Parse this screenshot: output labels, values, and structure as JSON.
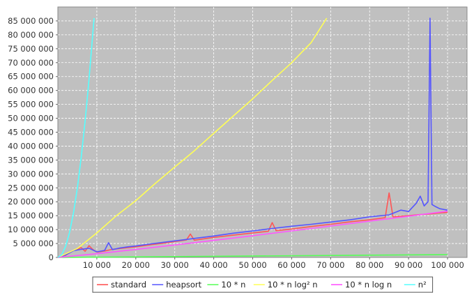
{
  "chart_data": {
    "type": "line",
    "title": "",
    "xlabel": "",
    "ylabel": "",
    "xlim": [
      0,
      105000
    ],
    "ylim": [
      0,
      90000000
    ],
    "grid": true,
    "legend_position": "bottom",
    "x_ticks": [
      {
        "value": 10000,
        "label": "10 000"
      },
      {
        "value": 20000,
        "label": "20 000"
      },
      {
        "value": 30000,
        "label": "30 000"
      },
      {
        "value": 40000,
        "label": "40 000"
      },
      {
        "value": 50000,
        "label": "50 000"
      },
      {
        "value": 60000,
        "label": "60 000"
      },
      {
        "value": 70000,
        "label": "70 000"
      },
      {
        "value": 80000,
        "label": "80 000"
      },
      {
        "value": 90000,
        "label": "90 000"
      },
      {
        "value": 100000,
        "label": "100 000"
      }
    ],
    "y_ticks": [
      {
        "value": 0,
        "label": "0"
      },
      {
        "value": 5000000,
        "label": "5 000 000"
      },
      {
        "value": 10000000,
        "label": "10 000 000"
      },
      {
        "value": 15000000,
        "label": "15 000 000"
      },
      {
        "value": 20000000,
        "label": "20 000 000"
      },
      {
        "value": 25000000,
        "label": "25 000 000"
      },
      {
        "value": 30000000,
        "label": "30 000 000"
      },
      {
        "value": 35000000,
        "label": "35 000 000"
      },
      {
        "value": 40000000,
        "label": "40 000 000"
      },
      {
        "value": 45000000,
        "label": "45 000 000"
      },
      {
        "value": 50000000,
        "label": "50 000 000"
      },
      {
        "value": 55000000,
        "label": "55 000 000"
      },
      {
        "value": 60000000,
        "label": "60 000 000"
      },
      {
        "value": 65000000,
        "label": "65 000 000"
      },
      {
        "value": 70000000,
        "label": "70 000 000"
      },
      {
        "value": 75000000,
        "label": "75 000 000"
      },
      {
        "value": 80000000,
        "label": "80 000 000"
      },
      {
        "value": 85000000,
        "label": "85 000 000"
      }
    ],
    "series": [
      {
        "name": "standard",
        "color": "#ff5555",
        "x": [
          0,
          2000,
          4000,
          6000,
          7000,
          8000,
          9000,
          10000,
          12000,
          14000,
          16000,
          18000,
          20000,
          24000,
          28000,
          30000,
          33000,
          34000,
          35000,
          40000,
          45000,
          50000,
          54000,
          55000,
          56000,
          60000,
          65000,
          70000,
          75000,
          80000,
          84000,
          85000,
          86000,
          88000,
          90000,
          92000,
          94000,
          95000,
          96000,
          98000,
          100000
        ],
        "y": [
          0,
          800000,
          2500000,
          3500000,
          2200000,
          4200000,
          2800000,
          1900000,
          2300000,
          2900000,
          3200000,
          3500000,
          3800000,
          4600000,
          5300000,
          5700000,
          6300000,
          8400000,
          6200000,
          7200000,
          8000000,
          8800000,
          9400000,
          12500000,
          9600000,
          10200000,
          11100000,
          11900000,
          12800000,
          13500000,
          14300000,
          23200000,
          14600000,
          14800000,
          15000000,
          15300000,
          15500000,
          15600000,
          15700000,
          16000000,
          16200000
        ]
      },
      {
        "name": "heapsort",
        "color": "#5555ff",
        "x": [
          0,
          2000,
          4000,
          6000,
          8000,
          10000,
          12000,
          13000,
          14000,
          16000,
          18000,
          20000,
          24000,
          28000,
          32000,
          36000,
          40000,
          45000,
          50000,
          55000,
          60000,
          65000,
          70000,
          75000,
          80000,
          85000,
          88000,
          90000,
          92000,
          93000,
          94000,
          95000,
          95500,
          96000,
          97000,
          98000,
          100000
        ],
        "y": [
          0,
          900000,
          2400000,
          2900000,
          3300000,
          2000000,
          2500000,
          5300000,
          2800000,
          3400000,
          3800000,
          4100000,
          4900000,
          5600000,
          6300000,
          7000000,
          7700000,
          8700000,
          9500000,
          10400000,
          11200000,
          11900000,
          12700000,
          13500000,
          14600000,
          15300000,
          17000000,
          16500000,
          19500000,
          22000000,
          18500000,
          20000000,
          86000000,
          19000000,
          18200000,
          17500000,
          17000000
        ]
      },
      {
        "name": "10 * n",
        "color": "#55ff55",
        "x": [
          0,
          100000
        ],
        "y": [
          0,
          1000000
        ]
      },
      {
        "name": "10 * n log² n",
        "color": "#ffff55",
        "x": [
          0,
          5000,
          10000,
          15000,
          20000,
          25000,
          30000,
          35000,
          40000,
          45000,
          50000,
          55000,
          60000,
          65000,
          69000
        ],
        "y": [
          0,
          3200000,
          8800000,
          15000000,
          20400000,
          26600000,
          32500000,
          38300000,
          44600000,
          50800000,
          57000000,
          63600000,
          70000000,
          77200000,
          86000000
        ]
      },
      {
        "name": "10 * n log n",
        "color": "#ff55ff",
        "x": [
          0,
          10000,
          20000,
          30000,
          40000,
          50000,
          60000,
          70000,
          80000,
          90000,
          100000
        ],
        "y": [
          0,
          1330000,
          2860000,
          4460000,
          6110000,
          7800000,
          9520000,
          11270000,
          13030000,
          14810000,
          16610000
        ]
      },
      {
        "name": "n²",
        "color": "#55ffff",
        "x": [
          0,
          1000,
          2000,
          3000,
          4000,
          5000,
          6000,
          7000,
          8000,
          9000,
          9300
        ],
        "y": [
          0,
          1000000,
          4000000,
          9000000,
          16000000,
          25000000,
          36000000,
          49000000,
          64000000,
          81000000,
          86000000
        ]
      }
    ]
  }
}
